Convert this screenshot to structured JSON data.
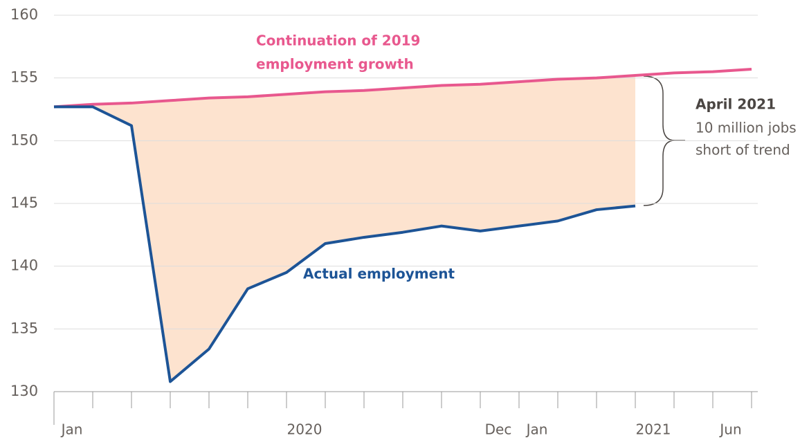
{
  "chart_data": {
    "type": "line",
    "categories": [
      "Jan",
      null,
      null,
      null,
      null,
      null,
      "2020",
      null,
      null,
      null,
      null,
      "Dec",
      "Jan",
      null,
      null,
      "2021",
      null,
      "Jun",
      null
    ],
    "series": [
      {
        "name": "Continuation of 2019 employment growth",
        "color": "#e8588e",
        "values": [
          152.7,
          152.9,
          153.0,
          153.2,
          153.4,
          153.5,
          153.7,
          153.9,
          154.0,
          154.2,
          154.4,
          154.5,
          154.7,
          154.9,
          155.0,
          155.2,
          155.4,
          155.5,
          155.7
        ]
      },
      {
        "name": "Actual employment",
        "color": "#1d5496",
        "values": [
          152.7,
          152.7,
          151.2,
          130.8,
          133.4,
          138.2,
          139.5,
          141.8,
          142.3,
          142.7,
          143.2,
          142.8,
          143.2,
          143.6,
          144.5,
          144.8,
          null,
          null,
          null
        ]
      }
    ],
    "legend_lines": [
      "Continuation of 2019",
      "employment growth"
    ],
    "annotation": {
      "title": "April 2021",
      "lines": [
        "10 million jobs",
        "short of trend"
      ]
    },
    "fill_color": "#fde3cf",
    "ylim": [
      130,
      160
    ],
    "yticks": [
      130,
      135,
      140,
      145,
      150,
      155,
      160
    ],
    "grid": true
  }
}
